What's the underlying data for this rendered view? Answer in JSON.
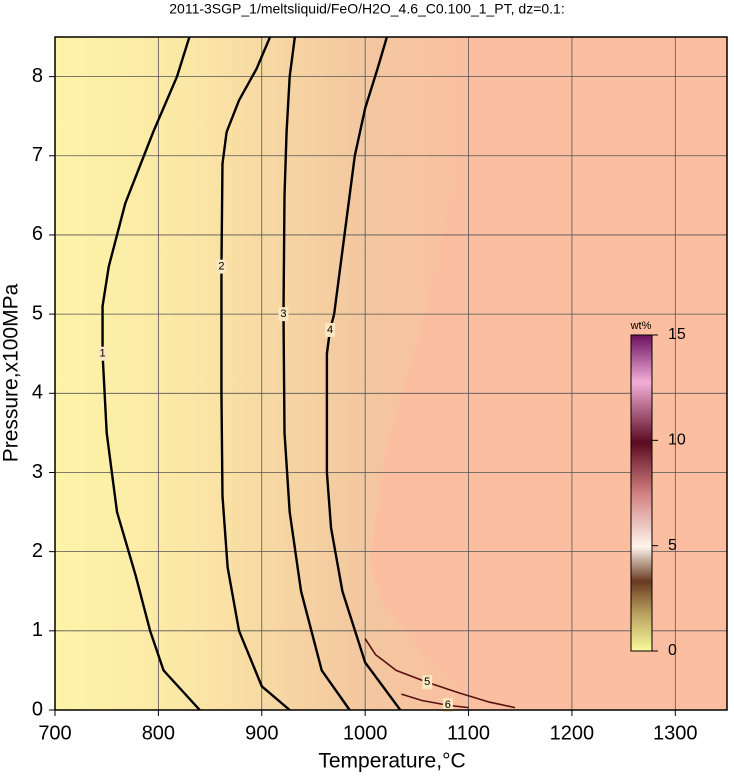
{
  "chart_data": {
    "type": "contour",
    "title": "2011-3SGP_1/meltsliquid/FeO/H2O_4.6_C0.100_1_PT, dz=0.1:",
    "x_label": "Temperature,°C",
    "y_label": "Pressure,x100MPa",
    "xlim": [
      700,
      1350
    ],
    "xticks": [
      700,
      800,
      900,
      1000,
      1100,
      1200,
      1300
    ],
    "ylim": [
      0,
      8.5
    ],
    "yticks": [
      0,
      1,
      2,
      3,
      4,
      5,
      6,
      7,
      8
    ],
    "grid": true,
    "contours": [
      {
        "level": 1,
        "x": [
          840,
          805,
          792,
          778,
          760,
          750,
          746,
          746,
          752,
          768,
          795,
          818,
          830
        ],
        "y": [
          0,
          0.5,
          1.0,
          1.7,
          2.5,
          3.5,
          4.5,
          5.1,
          5.6,
          6.4,
          7.3,
          8.0,
          8.5
        ]
      },
      {
        "level": 2,
        "x": [
          927,
          900,
          878,
          867,
          862,
          861,
          861,
          862,
          866,
          878,
          895,
          908
        ],
        "y": [
          0,
          0.3,
          1.0,
          1.8,
          2.7,
          4.0,
          5.6,
          6.9,
          7.3,
          7.7,
          8.1,
          8.5
        ]
      },
      {
        "level": 3,
        "x": [
          985,
          958,
          938,
          927,
          922,
          921,
          922,
          924,
          927,
          932
        ],
        "y": [
          0,
          0.5,
          1.5,
          2.5,
          3.5,
          5.0,
          6.5,
          7.3,
          8.0,
          8.5
        ]
      },
      {
        "level": 4,
        "x": [
          1034,
          1000,
          978,
          967,
          963,
          963,
          966,
          970,
          980,
          990,
          1000,
          1012,
          1021
        ],
        "y": [
          0,
          0.6,
          1.5,
          2.3,
          3.0,
          4.5,
          4.8,
          5.0,
          6.0,
          7.0,
          7.6,
          8.1,
          8.5
        ]
      },
      {
        "level": 5,
        "x": [
          1000,
          1010,
          1030,
          1060,
          1090,
          1120,
          1145
        ],
        "y": [
          0.9,
          0.7,
          0.5,
          0.35,
          0.22,
          0.1,
          0.03
        ]
      },
      {
        "level": 6,
        "x": [
          1035,
          1055,
          1080,
          1100
        ],
        "y": [
          0.2,
          0.12,
          0.06,
          0.03
        ]
      }
    ],
    "colorbar": {
      "label": "wt%",
      "lim": [
        0,
        15
      ],
      "ticks": [
        0,
        5,
        10,
        15
      ]
    }
  }
}
